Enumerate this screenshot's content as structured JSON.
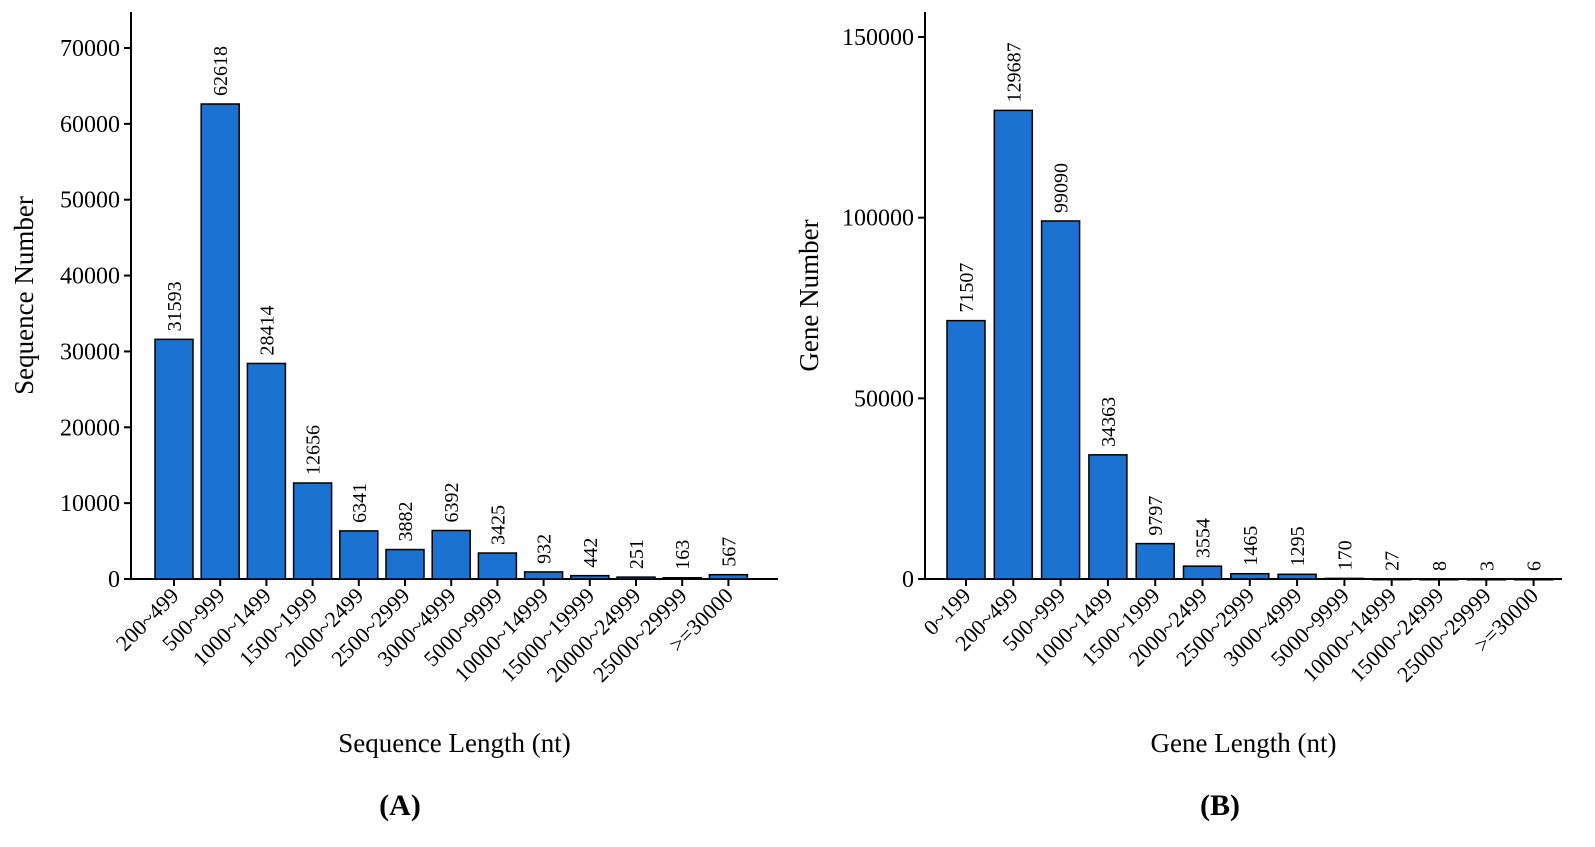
{
  "chart_data": [
    {
      "type": "bar",
      "panel_label": "(A)",
      "xlabel": "Sequence Length (nt)",
      "ylabel": "Sequence Number",
      "ylim": [
        0,
        75000
      ],
      "yticks": [
        0,
        10000,
        20000,
        30000,
        40000,
        50000,
        60000,
        70000
      ],
      "bar_color": "#1b72d0",
      "grid": false,
      "categories": [
        "200~499",
        "500~999",
        "1000~1499",
        "1500~1999",
        "2000~2499",
        "2500~2999",
        "3000~4999",
        "5000~9999",
        "10000~14999",
        "15000~19999",
        "20000~24999",
        "25000~29999",
        ">=30000"
      ],
      "values": [
        31593,
        62618,
        28414,
        12656,
        6341,
        3882,
        6392,
        3425,
        932,
        442,
        251,
        163,
        567
      ],
      "value_labels": [
        "31593",
        "62618",
        "28414",
        "12656",
        "6341",
        "3882",
        "6392",
        "3425",
        "932",
        "442",
        "251",
        "163",
        "567"
      ]
    },
    {
      "type": "bar",
      "panel_label": "(B)",
      "xlabel": "Gene Length (nt)",
      "ylabel": "Gene Number",
      "ylim": [
        0,
        150000
      ],
      "yticks": [
        0,
        50000,
        100000,
        150000
      ],
      "bar_color": "#1b72d0",
      "grid": false,
      "categories": [
        "0~199",
        "200~499",
        "500~999",
        "1000~1499",
        "1500~1999",
        "2000~2499",
        "2500~2999",
        "3000~4999",
        "5000~9999",
        "10000~14999",
        "15000~24999",
        "25000~29999",
        ">=30000"
      ],
      "values": [
        71507,
        129687,
        99090,
        34363,
        9797,
        3554,
        1465,
        1295,
        170,
        27,
        8,
        3,
        6
      ],
      "value_labels": [
        "71507",
        "129687",
        "99090",
        "34363",
        "9797",
        "3554",
        "1465",
        "1295",
        "170",
        "27",
        "8",
        "3",
        "6"
      ]
    }
  ]
}
